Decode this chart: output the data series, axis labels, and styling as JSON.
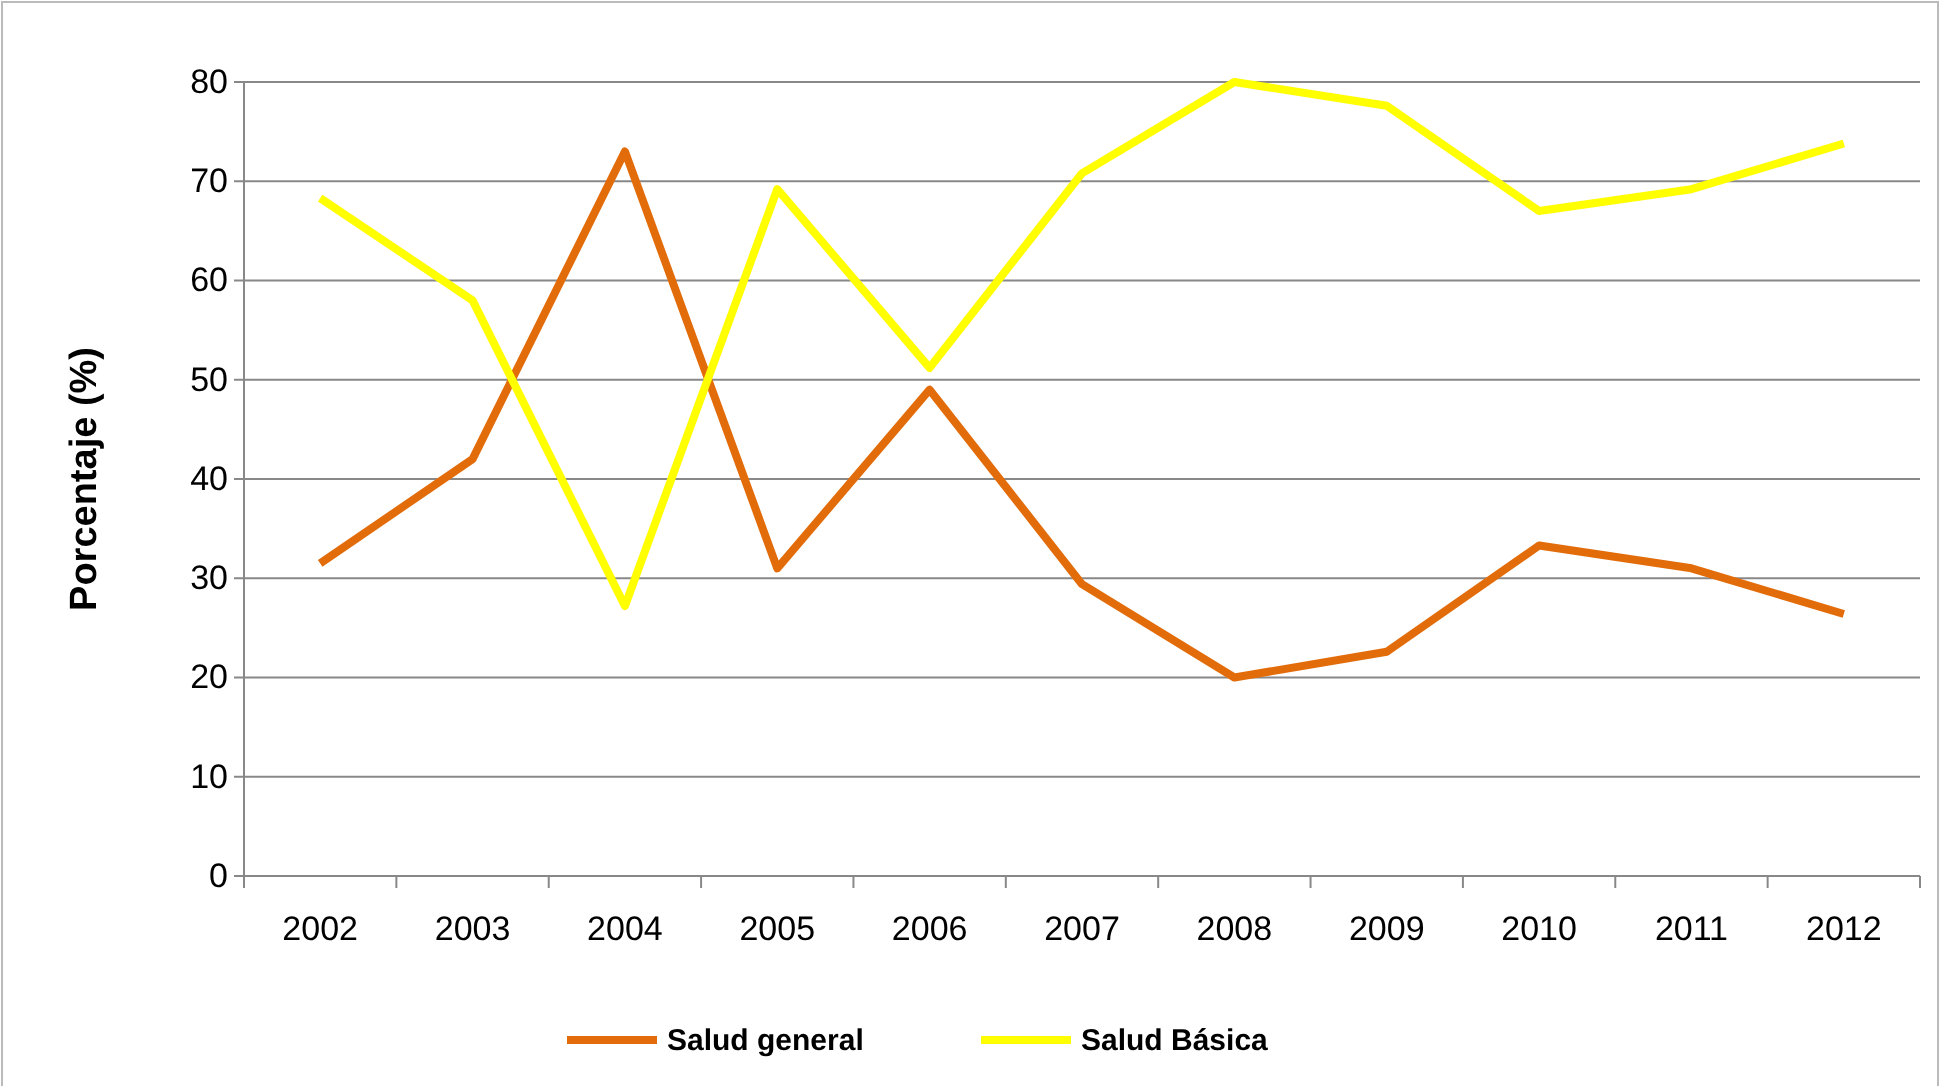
{
  "chart_data": {
    "type": "line",
    "ylabel": "Porcentaje (%)",
    "categories": [
      "2002",
      "2003",
      "2004",
      "2005",
      "2006",
      "2007",
      "2008",
      "2009",
      "2010",
      "2011",
      "2012"
    ],
    "series": [
      {
        "name": "Salud general",
        "color": "#e36c0a",
        "values": [
          31.5,
          42,
          73,
          31,
          49,
          29.4,
          20,
          22.6,
          33.3,
          31,
          26.4
        ]
      },
      {
        "name": "Salud Básica",
        "color": "#ffff00",
        "values": [
          68.3,
          58,
          27.2,
          69.2,
          51.2,
          70.8,
          80,
          77.6,
          67,
          69.2,
          73.8
        ]
      }
    ],
    "ylim": [
      0,
      80
    ],
    "yticks": [
      0,
      10,
      20,
      30,
      40,
      50,
      60,
      70,
      80
    ],
    "grid": "y",
    "legend": "bottom",
    "marker": "none",
    "line_style": "solid"
  }
}
